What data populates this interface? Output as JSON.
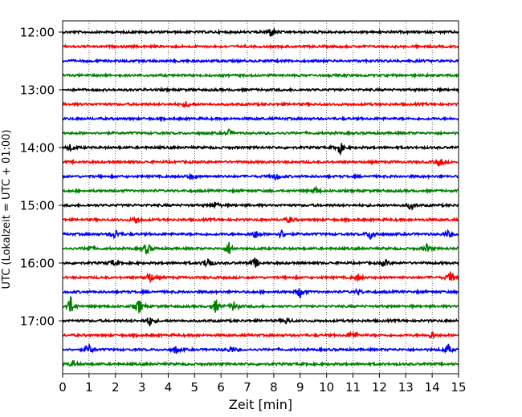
{
  "chart_data": {
    "type": "line",
    "title": "",
    "xlabel": "Zeit  [min]",
    "ylabel": "UTC (Lokalzeit = UTC + 01:00)",
    "x_ticks": [
      0,
      1,
      2,
      3,
      4,
      5,
      6,
      7,
      8,
      9,
      10,
      11,
      12,
      13,
      14,
      15
    ],
    "x_tick_labels": [
      "0",
      "1",
      "2",
      "3",
      "4",
      "5",
      "6",
      "7",
      "8",
      "9",
      "10",
      "11",
      "12",
      "13",
      "14",
      "15"
    ],
    "xlim": [
      0,
      15
    ],
    "y_tick_labels": [
      "12:00",
      "13:00",
      "14:00",
      "15:00",
      "16:00",
      "17:00"
    ],
    "trace_interval_min": 15,
    "trace_colors": [
      "#000000",
      "#ff0000",
      "#0000ff",
      "#008000"
    ],
    "grid_x": true,
    "grid_linestyle": "dotted",
    "series": [
      {
        "start": "12:00",
        "color": "#000000",
        "events": [
          {
            "t": 7.9,
            "a": 1.6
          }
        ]
      },
      {
        "start": "12:15",
        "color": "#ff0000",
        "events": []
      },
      {
        "start": "12:30",
        "color": "#0000ff",
        "events": []
      },
      {
        "start": "12:45",
        "color": "#008000",
        "events": []
      },
      {
        "start": "13:00",
        "color": "#000000",
        "events": []
      },
      {
        "start": "13:15",
        "color": "#ff0000",
        "events": [
          {
            "t": 4.7,
            "a": 0.9
          }
        ]
      },
      {
        "start": "13:30",
        "color": "#0000ff",
        "events": []
      },
      {
        "start": "13:45",
        "color": "#008000",
        "events": [
          {
            "t": 6.3,
            "a": 0.8
          }
        ]
      },
      {
        "start": "14:00",
        "color": "#000000",
        "events": [
          {
            "t": 0.3,
            "a": 0.9
          },
          {
            "t": 10.5,
            "a": 2.0
          }
        ]
      },
      {
        "start": "14:15",
        "color": "#ff0000",
        "events": [
          {
            "t": 14.3,
            "a": 1.2
          }
        ]
      },
      {
        "start": "14:30",
        "color": "#0000ff",
        "events": [
          {
            "t": 4.9,
            "a": 0.8
          },
          {
            "t": 8.1,
            "a": 1.2
          }
        ]
      },
      {
        "start": "14:45",
        "color": "#008000",
        "events": [
          {
            "t": 9.6,
            "a": 1.0
          }
        ]
      },
      {
        "start": "15:00",
        "color": "#000000",
        "events": [
          {
            "t": 5.8,
            "a": 1.1
          },
          {
            "t": 13.2,
            "a": 1.3
          }
        ]
      },
      {
        "start": "15:15",
        "color": "#ff0000",
        "events": [
          {
            "t": 2.8,
            "a": 1.3
          },
          {
            "t": 8.6,
            "a": 0.9
          }
        ]
      },
      {
        "start": "15:30",
        "color": "#0000ff",
        "events": [
          {
            "t": 2.0,
            "a": 1.6
          },
          {
            "t": 7.3,
            "a": 1.3
          },
          {
            "t": 8.3,
            "a": 1.2
          },
          {
            "t": 11.7,
            "a": 2.0
          },
          {
            "t": 14.6,
            "a": 0.9
          }
        ]
      },
      {
        "start": "15:45",
        "color": "#008000",
        "events": [
          {
            "t": 1.0,
            "a": 1.0
          },
          {
            "t": 3.2,
            "a": 1.8
          },
          {
            "t": 6.3,
            "a": 1.9
          },
          {
            "t": 13.8,
            "a": 1.2
          }
        ]
      },
      {
        "start": "16:00",
        "color": "#000000",
        "events": [
          {
            "t": 1.9,
            "a": 0.9
          },
          {
            "t": 5.5,
            "a": 2.2
          },
          {
            "t": 7.3,
            "a": 1.5
          },
          {
            "t": 12.2,
            "a": 1.1
          }
        ]
      },
      {
        "start": "16:15",
        "color": "#ff0000",
        "events": [
          {
            "t": 3.3,
            "a": 1.6
          },
          {
            "t": 11.2,
            "a": 0.9
          },
          {
            "t": 14.7,
            "a": 1.8
          }
        ]
      },
      {
        "start": "16:30",
        "color": "#0000ff",
        "events": [
          {
            "t": 9.0,
            "a": 1.7
          },
          {
            "t": 11.2,
            "a": 0.8
          }
        ]
      },
      {
        "start": "16:45",
        "color": "#008000",
        "events": [
          {
            "t": 0.3,
            "a": 2.8
          },
          {
            "t": 2.9,
            "a": 2.2
          },
          {
            "t": 5.8,
            "a": 2.0
          },
          {
            "t": 6.5,
            "a": 1.5
          }
        ]
      },
      {
        "start": "17:00",
        "color": "#000000",
        "events": [
          {
            "t": 3.3,
            "a": 1.5
          },
          {
            "t": 8.5,
            "a": 0.9
          }
        ]
      },
      {
        "start": "17:15",
        "color": "#ff0000",
        "events": [
          {
            "t": 11.0,
            "a": 1.1
          },
          {
            "t": 14.0,
            "a": 1.0
          }
        ]
      },
      {
        "start": "17:30",
        "color": "#0000ff",
        "events": [
          {
            "t": 1.0,
            "a": 1.5
          },
          {
            "t": 4.3,
            "a": 1.2
          },
          {
            "t": 6.4,
            "a": 1.0
          },
          {
            "t": 14.6,
            "a": 1.6
          }
        ]
      },
      {
        "start": "17:45",
        "color": "#008000",
        "events": [
          {
            "t": 0.4,
            "a": 1.0
          }
        ]
      }
    ]
  }
}
